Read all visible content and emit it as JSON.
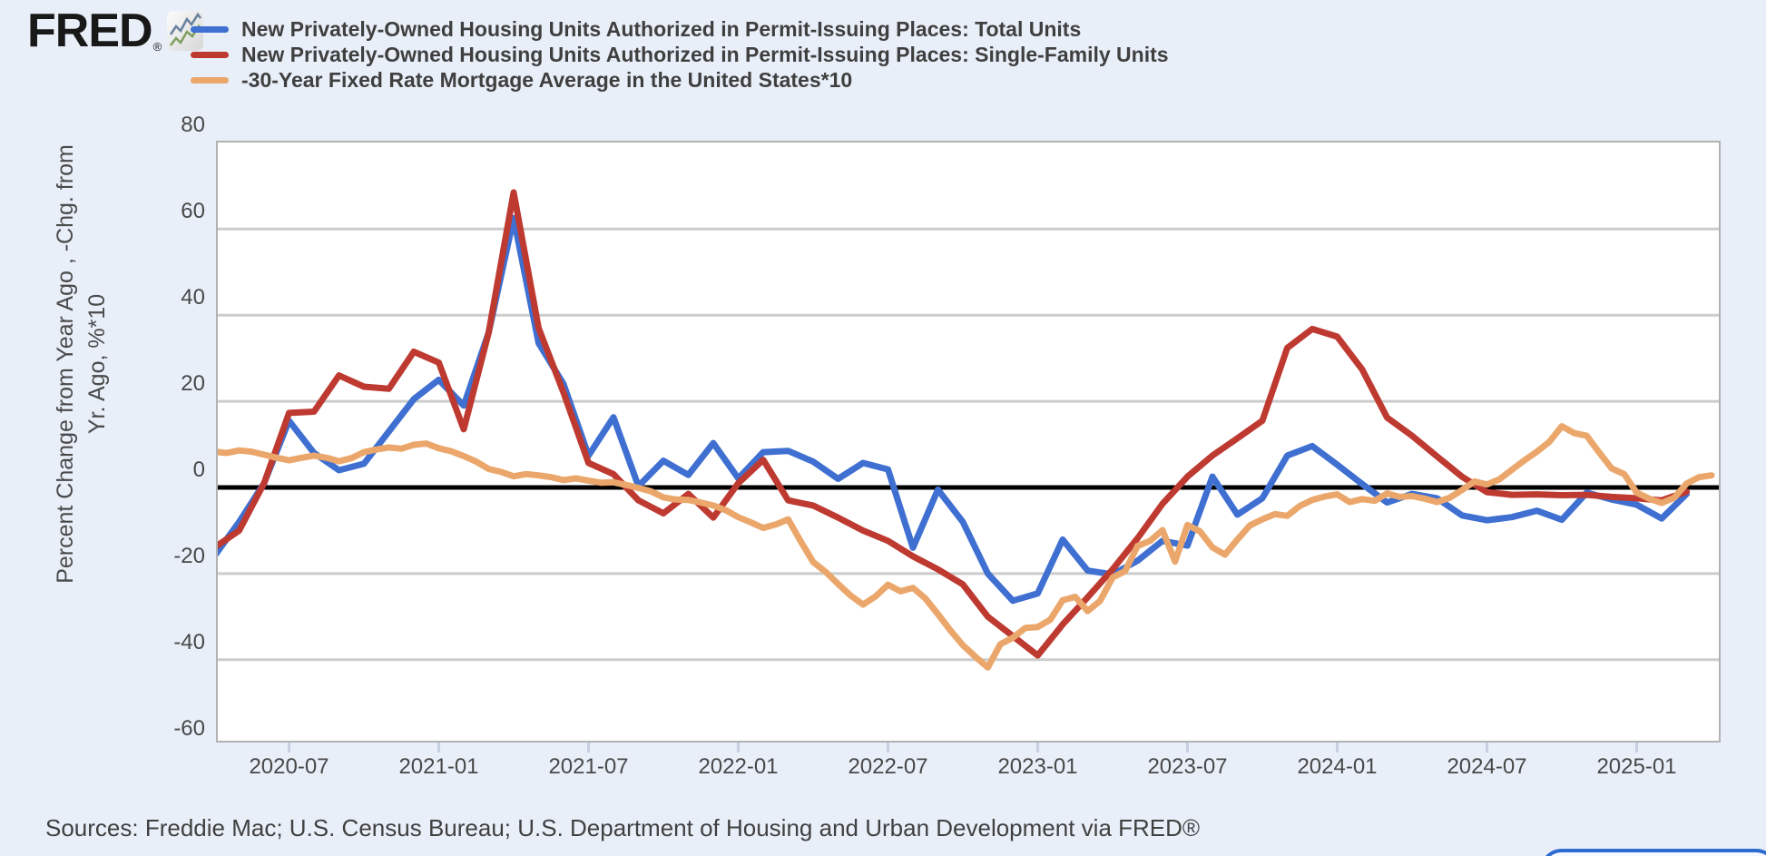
{
  "page": {
    "background_color": "#e9eff9"
  },
  "logo": {
    "text": "FRED",
    "registered_mark": "®",
    "icon": "line-chart-icon"
  },
  "y_axis": {
    "title_line1": "Percent Change from Year Ago , -Chg. from",
    "title_line2": "Yr. Ago, %*10"
  },
  "footer": {
    "sources": "Sources: Freddie Mac; U.S. Census Bureau; U.S. Department of Housing and Urban Development via FRED®"
  },
  "chart_data": {
    "type": "line",
    "title": "",
    "x_start": "2020-04",
    "x_end": "2025-04",
    "x_tick_labels": [
      "2020-07",
      "2021-01",
      "2021-07",
      "2022-01",
      "2022-07",
      "2023-01",
      "2023-07",
      "2024-01",
      "2024-07",
      "2025-01"
    ],
    "ylim": [
      -60,
      80
    ],
    "y_ticks": [
      80,
      60,
      40,
      20,
      0,
      -20,
      -40,
      -60
    ],
    "y_label": "Percent Change from Year Ago , -Chg. from Yr. Ago, %*10",
    "grid": "horizontal-gray",
    "zero_line_color": "#000000",
    "grid_color": "#cccccc",
    "plot_border_color": "#b2b2b2",
    "legend_position": "top-left",
    "series": [
      {
        "name": "New Privately-Owned Housing Units Authorized in Permit-Issuing Places: Total Units",
        "color": "#3E6FD1",
        "start": "2020-04",
        "step_months": 1,
        "values": [
          -16,
          -8,
          1,
          15.5,
          8,
          4,
          5.5,
          13,
          20.5,
          25,
          19,
          36,
          62.5,
          33.5,
          24,
          7.4,
          16.3,
          0.3,
          6.2,
          2.9,
          10.3,
          2.1,
          8.2,
          8.5,
          6,
          2,
          5.7,
          4.2,
          -14,
          -0.5,
          -8,
          -20,
          -26.3,
          -24.6,
          -12.1,
          -19.3,
          -20.2,
          -17,
          -12.4,
          -13.5,
          2.5,
          -6.3,
          -2.5,
          7.4,
          9.6,
          5.3,
          0.8,
          -3.5,
          -1.5,
          -2.5,
          -6.5,
          -7.6,
          -6.9,
          -5.4,
          -7.5,
          -1.2,
          -2.8,
          -4,
          -7.2,
          -1.5
        ]
      },
      {
        "name": "New Privately-Owned Housing Units Authorized in Permit-Issuing Places: Single-Family Units",
        "color": "#BE3A31",
        "start": "2020-04",
        "step_months": 1,
        "values": [
          -14,
          -10,
          1,
          17.3,
          17.6,
          26,
          23.4,
          22.9,
          31.5,
          29,
          13.5,
          36,
          68.5,
          37,
          22,
          5.7,
          3.1,
          -3,
          -6,
          -1.5,
          -7,
          1,
          6.4,
          -3,
          -4.2,
          -7,
          -10,
          -12.4,
          -16,
          -19,
          -22.5,
          -30,
          -34.5,
          -39,
          -31.8,
          -25.5,
          -19,
          -11.8,
          -3.8,
          2.5,
          7.4,
          11.4,
          15.5,
          32.4,
          36.8,
          35,
          27.4,
          16.2,
          12,
          7.2,
          2.5,
          -1.1,
          -1.7,
          -1.6,
          -1.8,
          -1.7,
          -2.2,
          -2.5,
          -3,
          -1
        ]
      },
      {
        "name": "-30-Year Fixed Rate Mortgage Average in the United States*10",
        "color": "#EBA76B",
        "start": "2020-04",
        "step_months": 0.5,
        "values": [
          8.3,
          8.0,
          8.6,
          8.3,
          7.6,
          6.9,
          6.3,
          6.9,
          7.4,
          6.9,
          6.1,
          6.8,
          8.2,
          8.8,
          9.3,
          9.0,
          9.9,
          10.2,
          9.1,
          8.4,
          7.3,
          6.0,
          4.3,
          3.6,
          2.6,
          3.1,
          2.8,
          2.4,
          1.7,
          2.1,
          1.6,
          1.1,
          1.2,
          0.6,
          -0.1,
          -0.9,
          -2.3,
          -2.8,
          -2.9,
          -3.5,
          -4.2,
          -5.3,
          -6.9,
          -8.1,
          -9.4,
          -8.6,
          -7.4,
          -12.5,
          -17.3,
          -19.6,
          -22.4,
          -25.1,
          -27.2,
          -25.3,
          -22.6,
          -24.1,
          -23.3,
          -25.8,
          -29.4,
          -33.2,
          -36.6,
          -39.3,
          -41.8,
          -36.4,
          -34.9,
          -32.6,
          -32.4,
          -30.7,
          -26.2,
          -25.4,
          -28.7,
          -26.3,
          -20.9,
          -19.4,
          -13.6,
          -12.4,
          -9.9,
          -17.2,
          -8.7,
          -10.2,
          -13.9,
          -15.6,
          -12.1,
          -8.8,
          -7.4,
          -6.2,
          -6.6,
          -4.3,
          -2.9,
          -2.1,
          -1.6,
          -3.4,
          -2.7,
          -3.1,
          -1.4,
          -2.2,
          -2.0,
          -2.6,
          -3.4,
          -2.4,
          -0.6,
          1.4,
          0.7,
          1.9,
          4.1,
          6.3,
          8.3,
          10.6,
          14.2,
          12.6,
          12.0,
          8.1,
          4.4,
          3.1,
          -1.2,
          -2.6,
          -3.6,
          -2.4,
          0.9,
          2.4,
          2.8
        ]
      }
    ]
  }
}
